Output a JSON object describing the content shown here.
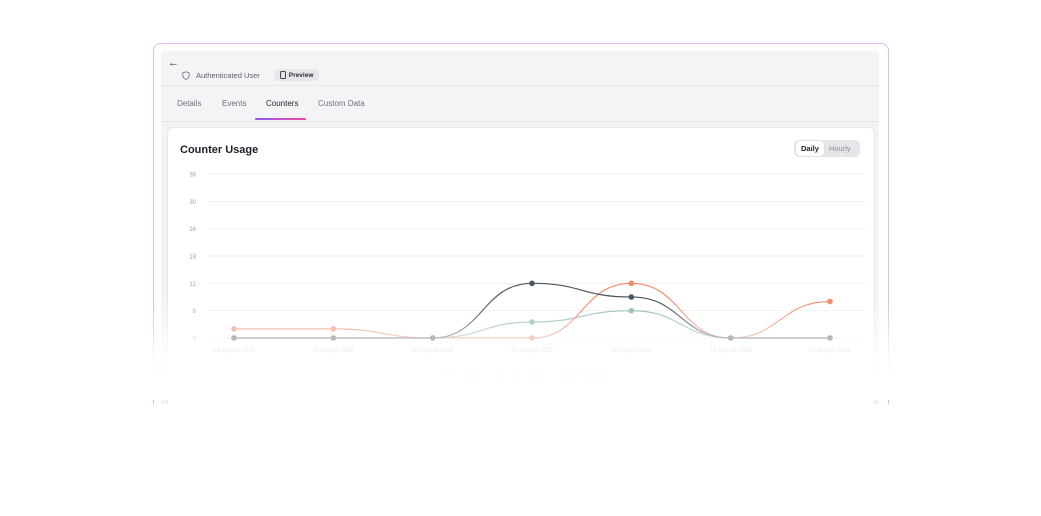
{
  "header": {
    "back_icon": "arrow-left-icon",
    "user_type": "Authenticated User",
    "preview_label": "Preview"
  },
  "tabs": [
    {
      "label": "Details"
    },
    {
      "label": "Events"
    },
    {
      "label": "Counters"
    },
    {
      "label": "Custom Data"
    }
  ],
  "active_tab": "Counters",
  "card": {
    "title": "Counter Usage",
    "toggle": {
      "daily": "Daily",
      "hourly": "Hourly",
      "selected": "Daily"
    }
  },
  "colors": {
    "articles": "#8fb8b4",
    "videos": "#ef8a6c",
    "games": "#4a5662",
    "grid": "#eeeef1",
    "tick": "#9aa0aa"
  },
  "chart_data": {
    "type": "line",
    "title": "Counter Usage",
    "xlabel": "",
    "ylabel": "",
    "ylim": [
      0,
      36
    ],
    "yticks": [
      "0",
      "6",
      "12",
      "18",
      "24",
      "30",
      "36"
    ],
    "categories": [
      "18 August 2025",
      "19 August 2025",
      "20 August 2025",
      "21 August 2025",
      "22 August 2025",
      "23 August 2025",
      "24 August 2025"
    ],
    "series": [
      {
        "name": "FH - Articles",
        "color": "#8fb8b4",
        "values": [
          0,
          0,
          0,
          3.5,
          6,
          0,
          0
        ]
      },
      {
        "name": "FH - Videos",
        "color": "#ef8a6c",
        "values": [
          2,
          2,
          0,
          0,
          12,
          0,
          8
        ]
      },
      {
        "name": "FH - Games",
        "color": "#4a5662",
        "values": [
          0,
          0,
          0,
          12,
          9,
          0,
          0
        ]
      }
    ],
    "legend_position": "bottom-center",
    "grid": true
  }
}
